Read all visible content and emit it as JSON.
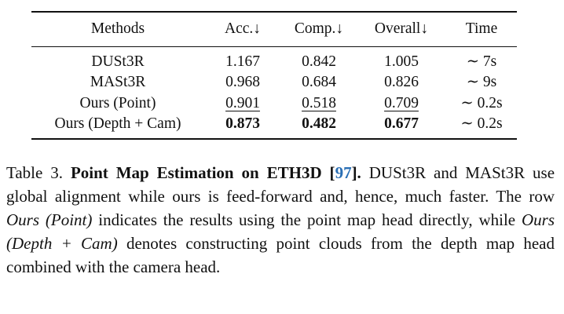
{
  "table": {
    "headers": [
      "Methods",
      "Acc.↓",
      "Comp.↓",
      "Overall↓",
      "Time"
    ],
    "rows": [
      {
        "method": "DUSt3R",
        "acc": "1.167",
        "comp": "0.842",
        "overall": "1.005",
        "time": "∼ 7s"
      },
      {
        "method": "MASt3R",
        "acc": "0.968",
        "comp": "0.684",
        "overall": "0.826",
        "time": "∼ 9s"
      },
      {
        "method": "Ours (Point)",
        "acc": "0.901",
        "comp": "0.518",
        "overall": "0.709",
        "time": "∼ 0.2s"
      },
      {
        "method": "Ours (Depth + Cam)",
        "acc": "0.873",
        "comp": "0.482",
        "overall": "0.677",
        "time": "∼ 0.2s"
      }
    ]
  },
  "caption": {
    "label": "Table 3.",
    "title_before_ref": "Point Map Estimation on ETH3D [",
    "ref": "97",
    "title_after_ref": "].",
    "text_1": "DUSt3R and MASt3R use global alignment while ours is feed-forward and, hence, much faster. The row",
    "italic_1": "Ours (Point)",
    "text_2": "indicates the results using the point map head directly, while",
    "italic_2": "Ours (Depth + Cam)",
    "text_3": "denotes constructing point clouds from the depth map head combined with the camera head."
  },
  "colors": {
    "ref_link": "#2a6fb5",
    "text": "#111111"
  }
}
